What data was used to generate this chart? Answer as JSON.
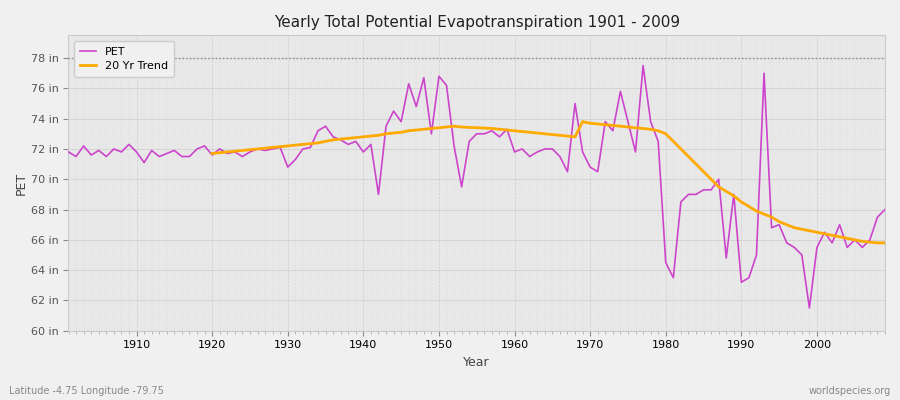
{
  "title": "Yearly Total Potential Evapotranspiration 1901 - 2009",
  "xlabel": "Year",
  "ylabel": "PET",
  "pet_color": "#cc44cc",
  "trend_color": "#ffaa00",
  "bg_color": "#f0f0f0",
  "plot_bg_color": "#e8e8e8",
  "legend_bg_color": "#e8e8e8",
  "ylim": [
    60,
    79
  ],
  "ytick_labels": [
    "60 in",
    "62 in",
    "64 in",
    "66 in",
    "68 in",
    "70 in",
    "72 in",
    "74 in",
    "76 in",
    "78 in"
  ],
  "ytick_values": [
    60,
    62,
    64,
    66,
    68,
    70,
    72,
    74,
    76,
    78
  ],
  "xlim": [
    1901,
    2009
  ],
  "xticks": [
    1910,
    1920,
    1930,
    1940,
    1950,
    1960,
    1970,
    1980,
    1990,
    2000
  ],
  "years": [
    1901,
    1902,
    1903,
    1904,
    1905,
    1906,
    1907,
    1908,
    1909,
    1910,
    1911,
    1912,
    1913,
    1914,
    1915,
    1916,
    1917,
    1918,
    1919,
    1920,
    1921,
    1922,
    1923,
    1924,
    1925,
    1926,
    1927,
    1928,
    1929,
    1930,
    1931,
    1932,
    1933,
    1934,
    1935,
    1936,
    1937,
    1938,
    1939,
    1940,
    1941,
    1942,
    1943,
    1944,
    1945,
    1946,
    1947,
    1948,
    1949,
    1950,
    1951,
    1952,
    1953,
    1954,
    1955,
    1956,
    1957,
    1958,
    1959,
    1960,
    1961,
    1962,
    1963,
    1964,
    1965,
    1966,
    1967,
    1968,
    1969,
    1970,
    1971,
    1972,
    1973,
    1974,
    1975,
    1976,
    1977,
    1978,
    1979,
    1980,
    1981,
    1982,
    1983,
    1984,
    1985,
    1986,
    1987,
    1988,
    1989,
    1990,
    1991,
    1992,
    1993,
    1994,
    1995,
    1996,
    1997,
    1998,
    1999,
    2000,
    2001,
    2002,
    2003,
    2004,
    2005,
    2006,
    2007,
    2008,
    2009
  ],
  "pet": [
    71.8,
    71.5,
    72.2,
    71.6,
    71.9,
    71.5,
    72.0,
    71.8,
    72.3,
    71.8,
    71.1,
    71.9,
    71.5,
    71.7,
    71.9,
    71.5,
    71.5,
    72.0,
    72.2,
    71.6,
    72.0,
    71.7,
    71.8,
    71.5,
    71.8,
    72.0,
    71.9,
    72.0,
    72.1,
    70.8,
    71.3,
    72.0,
    72.1,
    73.2,
    73.5,
    72.8,
    72.6,
    72.3,
    72.5,
    71.8,
    72.3,
    69.0,
    73.5,
    74.5,
    73.8,
    76.3,
    74.8,
    76.7,
    73.0,
    76.8,
    76.2,
    72.2,
    69.5,
    72.5,
    73.0,
    73.0,
    73.2,
    72.8,
    73.3,
    71.8,
    72.0,
    71.5,
    71.8,
    72.0,
    72.0,
    71.5,
    70.5,
    75.0,
    71.8,
    70.8,
    70.5,
    73.8,
    73.2,
    75.8,
    73.8,
    71.8,
    77.5,
    73.8,
    72.5,
    64.5,
    63.5,
    68.5,
    69.0,
    69.0,
    69.3,
    69.3,
    70.0,
    64.8,
    69.0,
    63.2,
    63.5,
    65.0,
    77.0,
    66.8,
    67.0,
    65.8,
    65.5,
    65.0,
    61.5,
    65.5,
    66.5,
    65.8,
    67.0,
    65.5,
    66.0,
    65.5,
    66.0,
    67.5,
    68.0
  ],
  "trend_years": [
    1920,
    1921,
    1922,
    1923,
    1924,
    1925,
    1926,
    1927,
    1928,
    1929,
    1930,
    1931,
    1932,
    1933,
    1934,
    1935,
    1936,
    1937,
    1938,
    1939,
    1940,
    1941,
    1942,
    1943,
    1944,
    1945,
    1946,
    1947,
    1948,
    1949,
    1950,
    1951,
    1952,
    1953,
    1954,
    1955,
    1956,
    1957,
    1958,
    1959,
    1960,
    1961,
    1962,
    1963,
    1964,
    1965,
    1966,
    1967,
    1968,
    1969,
    1970,
    1971,
    1972,
    1973,
    1974,
    1975,
    1976,
    1977,
    1978,
    1979,
    1980,
    1981,
    1982,
    1983,
    1984,
    1985,
    1986,
    1987,
    1988,
    1989,
    1990,
    1991,
    1992,
    1993,
    1994,
    1995,
    1996,
    1997,
    1998,
    1999,
    2000,
    2001,
    2002,
    2003,
    2004,
    2005,
    2006,
    2007,
    2008,
    2009
  ],
  "trend": [
    71.7,
    71.75,
    71.8,
    71.85,
    71.9,
    71.95,
    72.0,
    72.05,
    72.1,
    72.15,
    72.2,
    72.25,
    72.3,
    72.35,
    72.4,
    72.5,
    72.6,
    72.65,
    72.7,
    72.75,
    72.8,
    72.85,
    72.9,
    73.0,
    73.05,
    73.1,
    73.2,
    73.25,
    73.3,
    73.35,
    73.4,
    73.45,
    73.5,
    73.45,
    73.42,
    73.4,
    73.38,
    73.35,
    73.3,
    73.25,
    73.2,
    73.15,
    73.1,
    73.05,
    73.0,
    72.95,
    72.9,
    72.85,
    72.8,
    73.8,
    73.7,
    73.65,
    73.6,
    73.55,
    73.5,
    73.45,
    73.4,
    73.35,
    73.3,
    73.2,
    73.0,
    72.5,
    72.0,
    71.5,
    71.0,
    70.5,
    70.0,
    69.5,
    69.2,
    68.9,
    68.5,
    68.2,
    67.9,
    67.7,
    67.5,
    67.2,
    67.0,
    66.8,
    66.7,
    66.6,
    66.5,
    66.4,
    66.3,
    66.2,
    66.1,
    66.0,
    65.9,
    65.85,
    65.8,
    65.8
  ],
  "footer_left": "Latitude -4.75 Longitude -79.75",
  "footer_right": "worldspecies.org",
  "dotted_line_y": 78
}
